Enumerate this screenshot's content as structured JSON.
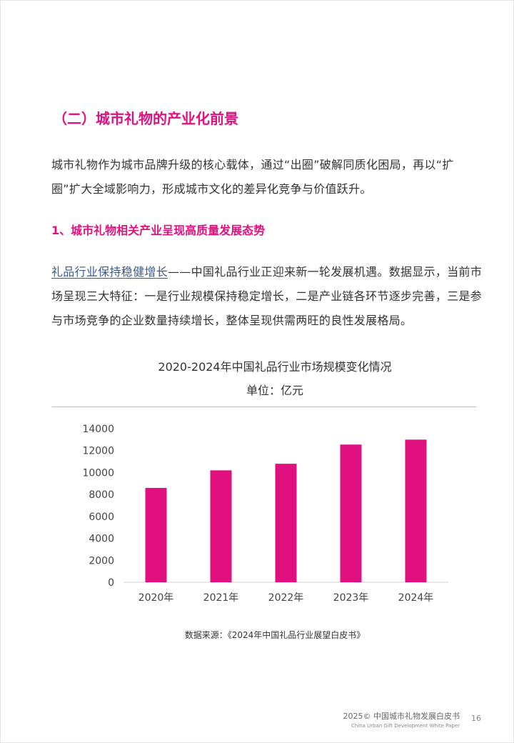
{
  "section": {
    "title": "（二）城市礼物的产业化前景"
  },
  "intro": {
    "text": "城市礼物作为城市品牌升级的核心载体，通过“出圈”破解同质化困局，再以“扩圈”扩大全域影响力，形成城市文化的差异化竞争与价值跃升。"
  },
  "subsection": {
    "title": "1、城市礼物相关产业呈现高质量发展态势"
  },
  "paragraph": {
    "link_text": "礼品行业保持稳健增长",
    "text": "——中国礼品行业正迎来新一轮发展机遇。数据显示，当前市场呈现三大特征：一是行业规模保持稳定增长，二是产业链各环节逐步完善，三是参与市场竞争的企业数量持续增长，整体呈现供需两旺的良性发展格局。"
  },
  "chart": {
    "title": "2020-2024年中国礼品行业市场规模变化情况",
    "unit": "单位：亿元",
    "source": "数据来源：《2024年中国礼品行业展望白皮书》"
  },
  "chart_data": {
    "type": "bar",
    "title": "2020-2024年中国礼品行业市场规模变化情况",
    "subtitle": "单位：亿元",
    "categories": [
      "2020年",
      "2021年",
      "2022年",
      "2023年",
      "2024年"
    ],
    "values": [
      8600,
      10200,
      10800,
      12550,
      13000
    ],
    "ylim": [
      0,
      14000
    ],
    "yticks": [
      0,
      2000,
      4000,
      6000,
      8000,
      10000,
      12000,
      14000
    ],
    "grid": false,
    "legend": "none",
    "bar_color": "#e0117f"
  },
  "footer": {
    "title": "2025© 中国城市礼物发展白皮书",
    "subtitle": "China Urban Gift Development White Paper",
    "page": "16"
  },
  "colors": {
    "accent": "#e0117f",
    "link": "#3a5a8c",
    "text": "#333333"
  }
}
